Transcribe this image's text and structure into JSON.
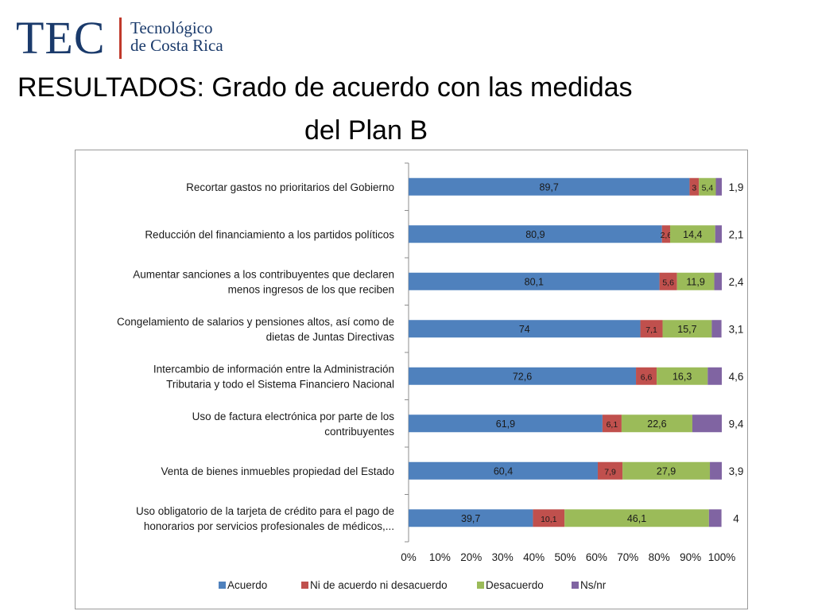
{
  "header": {
    "logo_abbr": "TEC",
    "logo_name_line1": "Tecnológico",
    "logo_name_line2": "de Costa Rica",
    "title_line1": "RESULTADOS:  Grado de acuerdo con las medidas",
    "title_line2": "del Plan B"
  },
  "colors": {
    "acuerdo": "#4f81bd",
    "ni": "#c0504d",
    "desacuerdo": "#9bbb59",
    "nsnr": "#8064a2"
  },
  "chart_data": {
    "type": "bar",
    "orientation": "horizontal-stacked-100",
    "title": "",
    "xlim": [
      0,
      100
    ],
    "x_ticks": [
      "0%",
      "10%",
      "20%",
      "30%",
      "40%",
      "50%",
      "60%",
      "70%",
      "80%",
      "90%",
      "100%"
    ],
    "legend_position": "bottom",
    "categories": [
      [
        "Recortar gastos no prioritarios del Gobierno"
      ],
      [
        "Reducción del financiamiento a los partidos  políticos"
      ],
      [
        "Aumentar sanciones a los contribuyentes que declaren",
        "menos  ingresos de los que reciben"
      ],
      [
        "Congelamiento de salarios y pensiones altos, así como de",
        "dietas de Juntas  Directivas"
      ],
      [
        "Intercambio de información entre la Administración",
        "Tributaria y todo el Sistema   Financiero Nacional"
      ],
      [
        "Uso de factura electrónica por parte de los",
        "contribuyentes"
      ],
      [
        "Venta de bienes inmuebles propiedad del Estado"
      ],
      [
        "Uso obligatorio de la tarjeta de crédito para el pago de",
        "honorarios por servicios profesionales de médicos,..."
      ]
    ],
    "series": [
      {
        "name": "Acuerdo",
        "color_key": "acuerdo",
        "values": [
          89.7,
          80.9,
          80.1,
          74,
          72.6,
          61.9,
          60.4,
          39.7
        ],
        "labels": [
          "89,7",
          "80,9",
          "80,1",
          "74",
          "72,6",
          "61,9",
          "60,4",
          "39,7"
        ]
      },
      {
        "name": "Ni de acuerdo ni desacuerdo",
        "color_key": "ni",
        "values": [
          3,
          2.6,
          5.6,
          7.1,
          6.6,
          6.1,
          7.9,
          10.1
        ],
        "labels": [
          "3",
          "2,6",
          "5,6",
          "7,1",
          "6,6",
          "6,1",
          "7,9",
          "10,1"
        ]
      },
      {
        "name": "Desacuerdo",
        "color_key": "desacuerdo",
        "values": [
          5.4,
          14.4,
          11.9,
          15.7,
          16.3,
          22.6,
          27.9,
          46.1
        ],
        "labels": [
          "5,4",
          "14,4",
          "11,9",
          "15,7",
          "16,3",
          "22,6",
          "27,9",
          "46,1"
        ]
      },
      {
        "name": "Ns/nr",
        "color_key": "nsnr",
        "values": [
          1.9,
          2.1,
          2.4,
          3.1,
          4.6,
          9.4,
          3.9,
          4
        ],
        "labels": [
          "1,9",
          "2,1",
          "2,4",
          "3,1",
          "4,6",
          "9,4",
          "3,9",
          "4"
        ]
      }
    ]
  }
}
